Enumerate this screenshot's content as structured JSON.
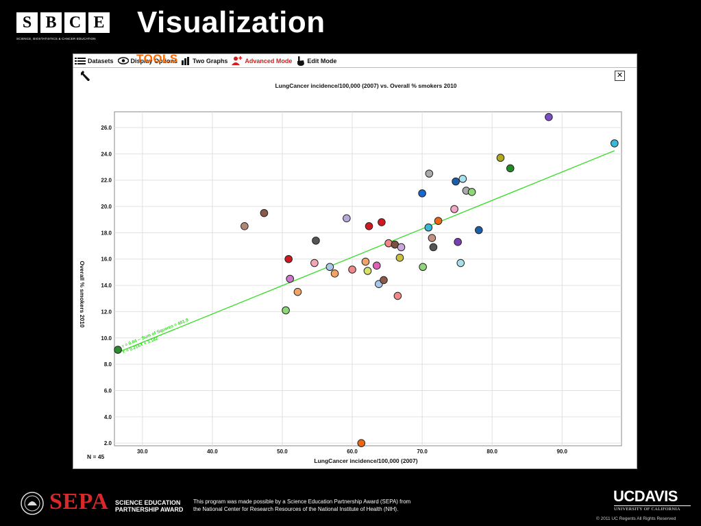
{
  "slide": {
    "title": "Visualization",
    "logo": {
      "letters": [
        "S",
        "B",
        "C",
        "E"
      ],
      "subtitle": "SCIENCE, BIOSTATISTICS & CANCER EDUCATION"
    }
  },
  "toolbar": {
    "datasets": "Datasets",
    "display_options": "Display Options",
    "two_graphs": "Two Graphs",
    "advanced_mode": "Advanced Mode",
    "edit_mode": "Edit Mode",
    "overlay": "TOOLS",
    "close": "✕"
  },
  "chart_data": {
    "type": "scatter",
    "title": "LungCancer incidence/100,000 (2007) vs. Overall % smokers 2010",
    "xlabel": "LungCancer incidence/100,000 (2007)",
    "ylabel": "Overall % smokers 2010",
    "xlim": [
      26.0,
      98.5
    ],
    "ylim": [
      1.8,
      27.2
    ],
    "xticks": [
      "30.0",
      "40.0",
      "50.0",
      "60.0",
      "70.0",
      "80.0",
      "90.0"
    ],
    "yticks": [
      "2.0",
      "4.0",
      "6.0",
      "8.0",
      "10.0",
      "12.0",
      "14.0",
      "16.0",
      "18.0",
      "20.0",
      "22.0",
      "24.0",
      "26.0"
    ],
    "grid": true,
    "n_label": "N = 45",
    "fit_line": {
      "slope": 0.216,
      "intercept": 3.182,
      "x_from": 26.5,
      "x_to": 97.5,
      "color": "#33dd22"
    },
    "fit_labels": [
      "r = 0.64 -- Sum of Squares = 461.9",
      "Y = 0.216X + 3.182"
    ],
    "points": [
      {
        "x": 26.5,
        "y": 9.1,
        "color": "#2e8b2e"
      },
      {
        "x": 44.6,
        "y": 18.5,
        "color": "#b08878"
      },
      {
        "x": 47.4,
        "y": 19.5,
        "color": "#8b5a4a"
      },
      {
        "x": 50.5,
        "y": 12.1,
        "color": "#8fd67a"
      },
      {
        "x": 50.9,
        "y": 16.0,
        "color": "#d01820"
      },
      {
        "x": 51.1,
        "y": 14.5,
        "color": "#cc77cc"
      },
      {
        "x": 52.2,
        "y": 13.5,
        "color": "#f2a466"
      },
      {
        "x": 54.6,
        "y": 15.7,
        "color": "#f2a6b6"
      },
      {
        "x": 54.8,
        "y": 17.4,
        "color": "#555555"
      },
      {
        "x": 56.8,
        "y": 15.4,
        "color": "#a8c8e8"
      },
      {
        "x": 57.5,
        "y": 14.9,
        "color": "#f2a466"
      },
      {
        "x": 59.2,
        "y": 19.1,
        "color": "#b8a8d8"
      },
      {
        "x": 60.0,
        "y": 15.2,
        "color": "#f08888"
      },
      {
        "x": 61.3,
        "y": 2.0,
        "color": "#ee6611"
      },
      {
        "x": 61.9,
        "y": 15.8,
        "color": "#f2a466"
      },
      {
        "x": 62.2,
        "y": 15.1,
        "color": "#d8e070"
      },
      {
        "x": 62.4,
        "y": 18.5,
        "color": "#d01820"
      },
      {
        "x": 63.5,
        "y": 15.5,
        "color": "#e060b8"
      },
      {
        "x": 63.8,
        "y": 14.1,
        "color": "#a8c8e8"
      },
      {
        "x": 64.2,
        "y": 18.8,
        "color": "#d01820"
      },
      {
        "x": 64.5,
        "y": 14.4,
        "color": "#8b5a4a"
      },
      {
        "x": 65.2,
        "y": 17.2,
        "color": "#f08888"
      },
      {
        "x": 66.1,
        "y": 17.1,
        "color": "#7a5040"
      },
      {
        "x": 66.5,
        "y": 13.2,
        "color": "#f08888"
      },
      {
        "x": 66.8,
        "y": 16.1,
        "color": "#c8c040"
      },
      {
        "x": 67.0,
        "y": 16.9,
        "color": "#c8a8d8"
      },
      {
        "x": 70.0,
        "y": 21.0,
        "color": "#1a66cc"
      },
      {
        "x": 70.1,
        "y": 15.4,
        "color": "#8fd67a"
      },
      {
        "x": 70.9,
        "y": 18.4,
        "color": "#3ab8d8"
      },
      {
        "x": 71.0,
        "y": 22.5,
        "color": "#aaaaaa"
      },
      {
        "x": 71.4,
        "y": 17.6,
        "color": "#c09080"
      },
      {
        "x": 71.6,
        "y": 16.9,
        "color": "#555555"
      },
      {
        "x": 72.3,
        "y": 18.9,
        "color": "#ee6611"
      },
      {
        "x": 74.6,
        "y": 19.8,
        "color": "#f2a6c8"
      },
      {
        "x": 74.8,
        "y": 21.9,
        "color": "#1a5fa8"
      },
      {
        "x": 75.1,
        "y": 17.3,
        "color": "#7a40b0"
      },
      {
        "x": 75.5,
        "y": 15.7,
        "color": "#a8e0e8"
      },
      {
        "x": 75.8,
        "y": 22.1,
        "color": "#a8e0f0"
      },
      {
        "x": 76.3,
        "y": 21.2,
        "color": "#aaaaaa"
      },
      {
        "x": 77.1,
        "y": 21.1,
        "color": "#8fd67a"
      },
      {
        "x": 78.1,
        "y": 18.2,
        "color": "#1a5fa8"
      },
      {
        "x": 81.2,
        "y": 23.7,
        "color": "#b0a820"
      },
      {
        "x": 82.6,
        "y": 22.9,
        "color": "#228b22"
      },
      {
        "x": 88.1,
        "y": 26.8,
        "color": "#7a50c0"
      },
      {
        "x": 97.5,
        "y": 24.8,
        "color": "#3ab8d8"
      }
    ]
  },
  "footer": {
    "sepa": "SEPA",
    "sepa_sub_1": "SCIENCE EDUCATION",
    "sepa_sub_2": "PARTNERSHIP AWARD",
    "credit_1": "This program was made possible by a Science Education Partnership Award (SEPA) from",
    "credit_2": "the National Center for Research Resources of the National Institute of Health (NIH).",
    "ucdavis": "UCDAVIS",
    "ucdavis_sub": "UNIVERSITY OF CALIFORNIA",
    "copyright": "© 2011 UC Regents All Rights Reserved"
  }
}
